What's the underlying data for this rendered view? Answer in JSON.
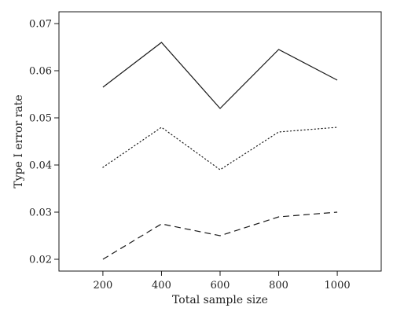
{
  "chart_data": {
    "type": "line",
    "xlabel": "Total sample size",
    "ylabel": "Type I error rate",
    "x": [
      200,
      400,
      600,
      800,
      1000
    ],
    "xlim": [
      50,
      1150
    ],
    "ylim": [
      0.0175,
      0.0725
    ],
    "xticks": [
      200,
      400,
      600,
      800,
      1000
    ],
    "yticks": [
      0.02,
      0.03,
      0.04,
      0.05,
      0.06,
      0.07
    ],
    "xtick_labels": [
      "200",
      "400",
      "600",
      "800",
      "1000"
    ],
    "ytick_labels": [
      "0.02",
      "0.03",
      "0.04",
      "0.05",
      "0.06",
      "0.07"
    ],
    "grid": false,
    "legend": "none",
    "series": [
      {
        "style": "solid",
        "color": "#1a1a1a",
        "values": [
          0.0565,
          0.066,
          0.052,
          0.0645,
          0.058
        ]
      },
      {
        "style": "dotted",
        "color": "#1a1a1a",
        "values": [
          0.0395,
          0.048,
          0.039,
          0.047,
          0.048
        ]
      },
      {
        "style": "dashed",
        "color": "#1a1a1a",
        "values": [
          0.02,
          0.0275,
          0.025,
          0.029,
          0.03
        ]
      }
    ]
  }
}
